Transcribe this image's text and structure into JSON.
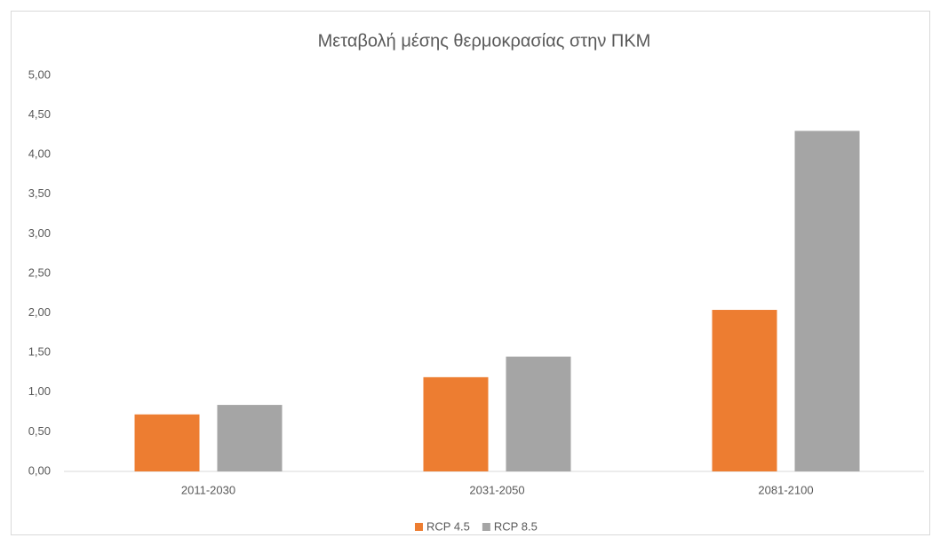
{
  "chart_data": {
    "type": "bar",
    "title": "Μεταβολή μέσης θερμοκρασίας στην ΠΚΜ",
    "categories": [
      "2011-2030",
      "2031-2050",
      "2081-2100"
    ],
    "series": [
      {
        "name": "RCP 4.5",
        "color": "#ed7d31",
        "values": [
          0.72,
          1.19,
          2.04
        ]
      },
      {
        "name": "RCP 8.5",
        "color": "#a5a5a5",
        "values": [
          0.84,
          1.45,
          4.3
        ]
      }
    ],
    "ylim": [
      0,
      5
    ],
    "yticks": [
      {
        "value": 0,
        "label": "0,00"
      },
      {
        "value": 0.5,
        "label": "0,50"
      },
      {
        "value": 1,
        "label": "1,00"
      },
      {
        "value": 1.5,
        "label": "1,50"
      },
      {
        "value": 2,
        "label": "2,00"
      },
      {
        "value": 2.5,
        "label": "2,50"
      },
      {
        "value": 3,
        "label": "3,00"
      },
      {
        "value": 3.5,
        "label": "3,50"
      },
      {
        "value": 4,
        "label": "4,00"
      },
      {
        "value": 4.5,
        "label": "4,50"
      },
      {
        "value": 5,
        "label": "5,00"
      }
    ],
    "grid": false,
    "legend": "bottom"
  }
}
